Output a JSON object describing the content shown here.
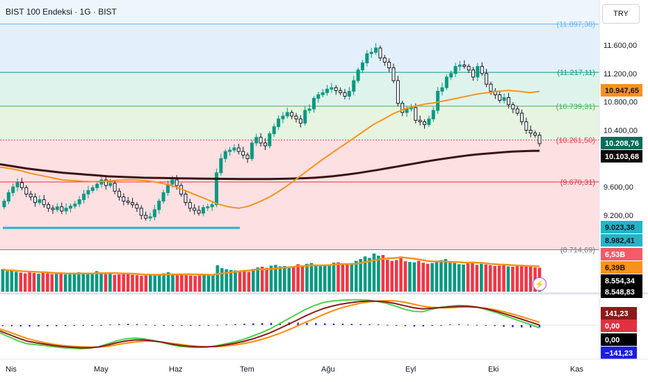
{
  "header": {
    "symbol": "BIST 100 Endeksi",
    "sep1": " · ",
    "interval": "1G",
    "sep2": " · ",
    "exchange": "BIST"
  },
  "currency_button": "TRY",
  "colors": {
    "up": "#089981",
    "down": "#f23645",
    "ma50": "#f7931a",
    "ma200": "#3a1212",
    "trendline": "#22b5c8",
    "macd": "#4ad14a",
    "signal": "#ff8a00",
    "macd_dark": "#8b1a1a",
    "histogram": "#2929c7"
  },
  "fib_levels": [
    {
      "label": "(11.897,38)",
      "value": 11897.38,
      "color": "#64b5f6",
      "bg": "#e3f0fb"
    },
    {
      "label": "(11.217,11)",
      "value": 11217.11,
      "color": "#089981",
      "bg": "#def3ec"
    },
    {
      "label": "(10.739,31)",
      "value": 10739.31,
      "color": "#4caf50",
      "bg": "#e6f4e1"
    },
    {
      "label": "(10.261,50)",
      "value": 10261.5,
      "color": "#f23645",
      "bg": "#fce0e2"
    },
    {
      "label": "(9.670,31)",
      "value": 9670.31,
      "color": "#e0323f",
      "bg": "#fce0e2"
    },
    {
      "label": "(8.714,69)",
      "value": 8714.69,
      "color": "#787b86",
      "bg": "#ffffff"
    }
  ],
  "price_axis": [
    "11.600,00",
    "11.200,00",
    "10.800,00",
    "10.400,00",
    "9.600,00",
    "9.200,00"
  ],
  "price_badges": [
    {
      "text": "10.947,65",
      "bg": "#f7931a",
      "fg": "#131722"
    },
    {
      "text": "10.208,76",
      "bg": "#0b6b5b",
      "fg": "#ffffff"
    },
    {
      "text": "10.103,68",
      "bg": "#0e0a0a",
      "fg": "#ffffff"
    },
    {
      "text": "9.023,38",
      "bg": "#22b5c8",
      "fg": "#131722"
    },
    {
      "text": "8.982,41",
      "bg": "#22b5c8",
      "fg": "#131722"
    },
    {
      "text": "6,53B",
      "bg": "#f25c66",
      "fg": "#ffffff"
    },
    {
      "text": "6,39B",
      "bg": "#f7931a",
      "fg": "#131722"
    },
    {
      "text": "8.554,34",
      "bg": "#000000",
      "fg": "#ffffff"
    },
    {
      "text": "8.548,83",
      "bg": "#000000",
      "fg": "#ffffff"
    }
  ],
  "macd_badges": [
    {
      "text": "141,23",
      "bg": "#8b1a1a",
      "fg": "#ffffff"
    },
    {
      "text": "0,00",
      "bg": "#e0323f",
      "fg": "#ffffff"
    },
    {
      "text": "0,00",
      "bg": "#000000",
      "fg": "#ffffff"
    },
    {
      "text": "−141,23",
      "bg": "#1d1de0",
      "fg": "#ffffff"
    }
  ],
  "time_axis": [
    "Nis",
    "May",
    "Haz",
    "Tem",
    "Ağu",
    "Eyl",
    "Eki",
    "Kas"
  ],
  "chart_data": {
    "type": "candlestick",
    "ylim": [
      8714.69,
      11897.38
    ],
    "series": [
      {
        "name": "close",
        "values": [
          9400,
          9520,
          9600,
          9660,
          9590,
          9500,
          9460,
          9380,
          9420,
          9350,
          9300,
          9280,
          9320,
          9260,
          9300,
          9330,
          9360,
          9420,
          9500,
          9550,
          9590,
          9640,
          9700,
          9620,
          9650,
          9540,
          9460,
          9400,
          9380,
          9350,
          9300,
          9200,
          9160,
          9180,
          9280,
          9400,
          9520,
          9640,
          9700,
          9620,
          9500,
          9380,
          9300,
          9270,
          9230,
          9310,
          9320,
          9350,
          9800,
          10000,
          10100,
          10120,
          10150,
          10100,
          10050,
          10000,
          10220,
          10300,
          10220,
          10180,
          10350,
          10450,
          10560,
          10600,
          10650,
          10600,
          10560,
          10500,
          10680,
          10700,
          10850,
          10900,
          10930,
          10980,
          11000,
          10960,
          10930,
          10880,
          10950,
          11100,
          11250,
          11350,
          11480,
          11500,
          11560,
          11420,
          11360,
          11280,
          11100,
          10780,
          10650,
          10700,
          10720,
          10540,
          10520,
          10480,
          10560,
          10680,
          10950,
          11000,
          11150,
          11200,
          11300,
          11320,
          11300,
          11250,
          11150,
          11300,
          11200,
          11050,
          10950,
          10900,
          10820,
          10860,
          10760,
          10700,
          10640,
          10520,
          10400,
          10360,
          10330,
          10210
        ]
      },
      {
        "name": "open",
        "values": [
          9320,
          9400,
          9520,
          9600,
          9660,
          9590,
          9500,
          9460,
          9380,
          9420,
          9350,
          9300,
          9280,
          9320,
          9260,
          9300,
          9330,
          9360,
          9420,
          9500,
          9550,
          9590,
          9640,
          9700,
          9620,
          9650,
          9540,
          9460,
          9400,
          9380,
          9350,
          9300,
          9200,
          9160,
          9180,
          9280,
          9400,
          9520,
          9640,
          9700,
          9620,
          9500,
          9380,
          9300,
          9270,
          9230,
          9310,
          9320,
          9350,
          9800,
          10000,
          10100,
          10120,
          10150,
          10100,
          10050,
          10000,
          10220,
          10300,
          10220,
          10180,
          10350,
          10450,
          10560,
          10600,
          10650,
          10600,
          10560,
          10500,
          10680,
          10700,
          10850,
          10900,
          10930,
          10980,
          11000,
          10960,
          10930,
          10880,
          10950,
          11100,
          11250,
          11350,
          11480,
          11500,
          11560,
          11420,
          11360,
          11280,
          11100,
          10780,
          10650,
          10700,
          10720,
          10540,
          10520,
          10480,
          10560,
          10680,
          10950,
          11000,
          11150,
          11200,
          11300,
          11320,
          11300,
          11250,
          11150,
          11300,
          11200,
          11050,
          10950,
          10900,
          10820,
          10860,
          10760,
          10700,
          10640,
          10520,
          10400,
          10360,
          10330
        ]
      }
    ],
    "ma200_values": [
      9920,
      9900,
      9880,
      9860,
      9845,
      9830,
      9815,
      9800,
      9790,
      9780,
      9770,
      9760,
      9750,
      9745,
      9740,
      9735,
      9730,
      9728,
      9726,
      9724,
      9722,
      9720,
      9718,
      9716,
      9715,
      9714,
      9713,
      9712,
      9712,
      9712,
      9712,
      9714,
      9716,
      9720,
      9724,
      9730,
      9740,
      9752,
      9766,
      9782,
      9800,
      9820,
      9840,
      9862,
      9884,
      9906,
      9928,
      9950,
      9972,
      9992,
      10010,
      10028,
      10044,
      10058,
      10070,
      10080,
      10090,
      10098,
      10104,
      10108,
      10110
    ],
    "ma50_values": [
      9880,
      9860,
      9830,
      9790,
      9760,
      9730,
      9700,
      9690,
      9680,
      9675,
      9680,
      9690,
      9700,
      9700,
      9690,
      9670,
      9640,
      9600,
      9540,
      9480,
      9420,
      9360,
      9320,
      9300,
      9330,
      9390,
      9460,
      9550,
      9650,
      9760,
      9870,
      9980,
      10080,
      10180,
      10280,
      10380,
      10480,
      10560,
      10640,
      10700,
      10740,
      10770,
      10790,
      10820,
      10850,
      10880,
      10910,
      10930,
      10950,
      10960,
      10950,
      10930,
      10947.65
    ],
    "volume_values": [
      6.1,
      5.6,
      5.8,
      5.4,
      5.2,
      5.0,
      5.3,
      5.1,
      4.9,
      5.2,
      5.0,
      4.8,
      4.9,
      5.1,
      4.7,
      4.8,
      5.0,
      5.3,
      5.1,
      4.9,
      5.2,
      5.6,
      5.0,
      4.8,
      4.9,
      4.6,
      4.7,
      5.0,
      4.8,
      4.6,
      4.5,
      4.3,
      4.4,
      4.7,
      4.6,
      4.8,
      5.0,
      5.3,
      4.9,
      4.7,
      4.6,
      4.5,
      4.4,
      4.3,
      4.4,
      4.7,
      4.6,
      4.8,
      7.2,
      6.4,
      6.1,
      5.9,
      5.8,
      5.6,
      5.9,
      5.4,
      6.2,
      6.6,
      6.8,
      6.5,
      7.1,
      7.3,
      6.9,
      7.0,
      6.6,
      6.8,
      7.5,
      7.2,
      7.6,
      7.8,
      7.3,
      7.0,
      7.2,
      7.4,
      7.9,
      8.0,
      7.6,
      7.7,
      7.8,
      8.4,
      8.9,
      9.6,
      9.2,
      10.4,
      9.8,
      10.0,
      8.7,
      8.4,
      8.6,
      9.6,
      8.3,
      8.1,
      8.0,
      8.4,
      7.9,
      7.6,
      7.8,
      8.1,
      8.6,
      8.9,
      7.9,
      7.8,
      7.5,
      7.4,
      7.7,
      7.9,
      7.3,
      7.6,
      7.4,
      7.2,
      7.0,
      7.1,
      7.2,
      6.9,
      6.8,
      7.0,
      6.9,
      7.1,
      6.8,
      6.6,
      6.53
    ],
    "macd_values": [
      -40,
      -60,
      -80,
      -95,
      -100,
      -104,
      -110,
      -115,
      -118,
      -121,
      -118,
      -110,
      -95,
      -80,
      -70,
      -66,
      -70,
      -78,
      -88,
      -100,
      -108,
      -112,
      -114,
      -112,
      -106,
      -96,
      -86,
      -74,
      -58,
      -40,
      -20,
      5,
      30,
      55,
      80,
      100,
      115,
      122,
      126,
      128,
      128,
      126,
      120,
      110,
      96,
      80,
      70,
      68,
      80,
      90,
      96,
      100,
      98,
      92,
      80,
      66,
      50,
      34,
      18,
      2,
      -14
    ],
    "signal_values": [
      -20,
      -35,
      -52,
      -68,
      -80,
      -90,
      -98,
      -104,
      -108,
      -110,
      -112,
      -112,
      -108,
      -100,
      -92,
      -86,
      -82,
      -82,
      -86,
      -92,
      -98,
      -104,
      -108,
      -110,
      -110,
      -107,
      -102,
      -95,
      -86,
      -74,
      -60,
      -44,
      -26,
      -6,
      14,
      34,
      54,
      72,
      88,
      100,
      110,
      118,
      122,
      124,
      122,
      116,
      106,
      96,
      90,
      88,
      88,
      90,
      92,
      90,
      86,
      78,
      68,
      56,
      42,
      28,
      14
    ],
    "histogram_values": [
      -5,
      -6,
      -7,
      -8,
      -7,
      -6,
      -6,
      -5,
      -4,
      -3,
      -2,
      0,
      3,
      5,
      6,
      5,
      3,
      0,
      -1,
      -2,
      -3,
      -3,
      -2,
      -1,
      1,
      3,
      5,
      7,
      9,
      10,
      11,
      12,
      13,
      12,
      11,
      10,
      9,
      8,
      7,
      6,
      5,
      4,
      3,
      1,
      -2,
      -5,
      -8,
      -7,
      -4,
      0,
      3,
      4,
      2,
      1,
      -2,
      -5,
      -9,
      -11,
      -12,
      -12,
      -11
    ]
  }
}
